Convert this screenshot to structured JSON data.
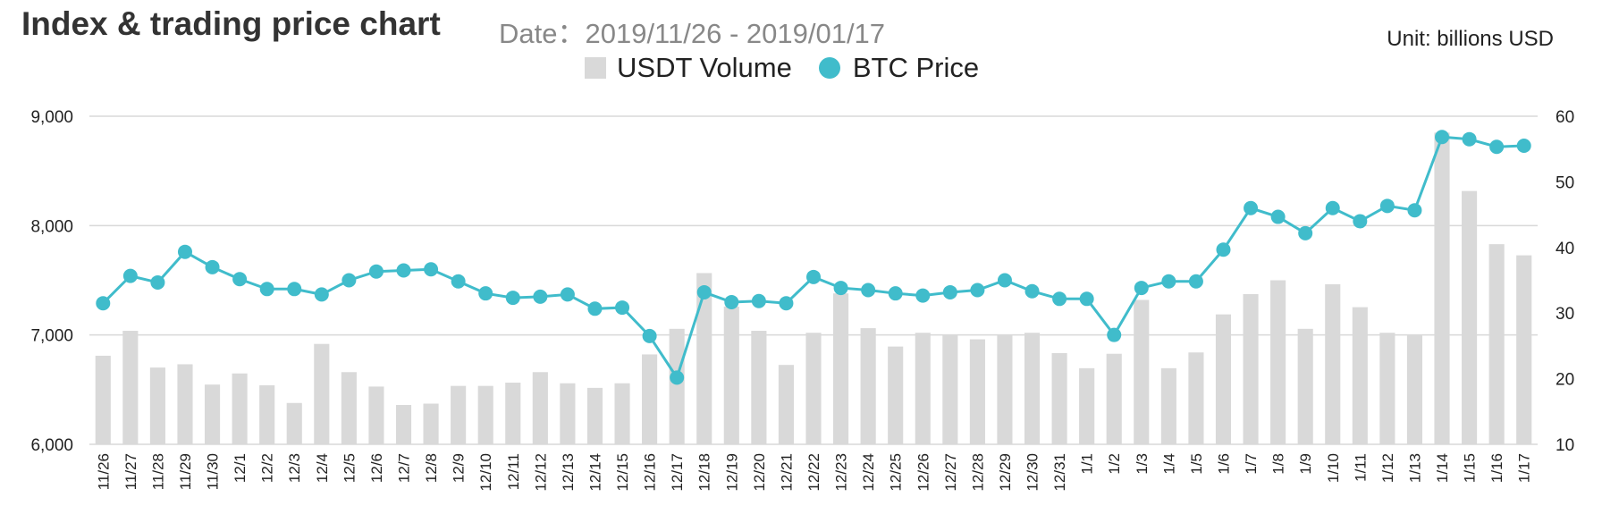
{
  "header": {
    "title": "Index & trading price chart",
    "date_range": "Date：2019/11/26 - 2019/01/17",
    "unit": "Unit: billions USD"
  },
  "legend": {
    "volume_label": "USDT Volume",
    "price_label": "BTC Price"
  },
  "colors": {
    "bar": "#d9d9d9",
    "line": "#40bccb",
    "grid": "#d9d9d9"
  },
  "chart_data": {
    "type": "bar+line",
    "categories": [
      "11/26",
      "11/27",
      "11/28",
      "11/29",
      "11/30",
      "12/1",
      "12/2",
      "12/3",
      "12/4",
      "12/5",
      "12/6",
      "12/7",
      "12/8",
      "12/9",
      "12/10",
      "12/11",
      "12/12",
      "12/13",
      "12/14",
      "12/15",
      "12/16",
      "12/17",
      "12/18",
      "12/19",
      "12/20",
      "12/21",
      "12/22",
      "12/23",
      "12/24",
      "12/25",
      "12/26",
      "12/27",
      "12/28",
      "12/29",
      "12/30",
      "12/31",
      "1/1",
      "1/2",
      "1/3",
      "1/4",
      "1/5",
      "1/6",
      "1/7",
      "1/8",
      "1/9",
      "1/10",
      "1/11",
      "1/12",
      "1/13",
      "1/14",
      "1/15",
      "1/16",
      "1/17"
    ],
    "series": [
      {
        "name": "USDT Volume",
        "type": "bar",
        "axis": "right",
        "values": [
          23.5,
          27.3,
          21.7,
          22.2,
          19.1,
          20.8,
          19.0,
          16.3,
          25.3,
          21.0,
          18.8,
          16.0,
          16.2,
          18.9,
          18.9,
          19.4,
          21.0,
          19.3,
          18.6,
          19.3,
          23.7,
          27.6,
          36.1,
          31.0,
          27.3,
          22.1,
          27.0,
          33.0,
          27.7,
          24.9,
          27.0,
          26.6,
          26.0,
          26.6,
          27.0,
          23.9,
          21.6,
          23.8,
          32.0,
          21.6,
          24.0,
          29.8,
          32.9,
          35.0,
          27.6,
          34.4,
          30.9,
          27.0,
          26.6,
          57.5,
          48.6,
          40.5,
          38.8
        ]
      },
      {
        "name": "BTC Price",
        "type": "line",
        "axis": "left",
        "values": [
          7290,
          7540,
          7480,
          7760,
          7620,
          7510,
          7420,
          7420,
          7370,
          7500,
          7580,
          7590,
          7600,
          7490,
          7380,
          7340,
          7350,
          7370,
          7240,
          7250,
          6990,
          6610,
          7390,
          7300,
          7310,
          7290,
          7530,
          7430,
          7410,
          7380,
          7360,
          7390,
          7410,
          7500,
          7400,
          7330,
          7330,
          7000,
          7430,
          7490,
          7490,
          7780,
          8160,
          8080,
          7930,
          8160,
          8040,
          8180,
          8140,
          8810,
          8790,
          8720,
          8730
        ]
      }
    ],
    "y_left": {
      "ticks": [
        "6,000",
        "7,000",
        "8,000",
        "9,000"
      ],
      "min": 6000,
      "max": 9000
    },
    "y_right": {
      "ticks": [
        "10",
        "20",
        "30",
        "40",
        "50",
        "60"
      ],
      "min": 10,
      "max": 60
    },
    "grid": true,
    "legend_position": "top-center"
  }
}
